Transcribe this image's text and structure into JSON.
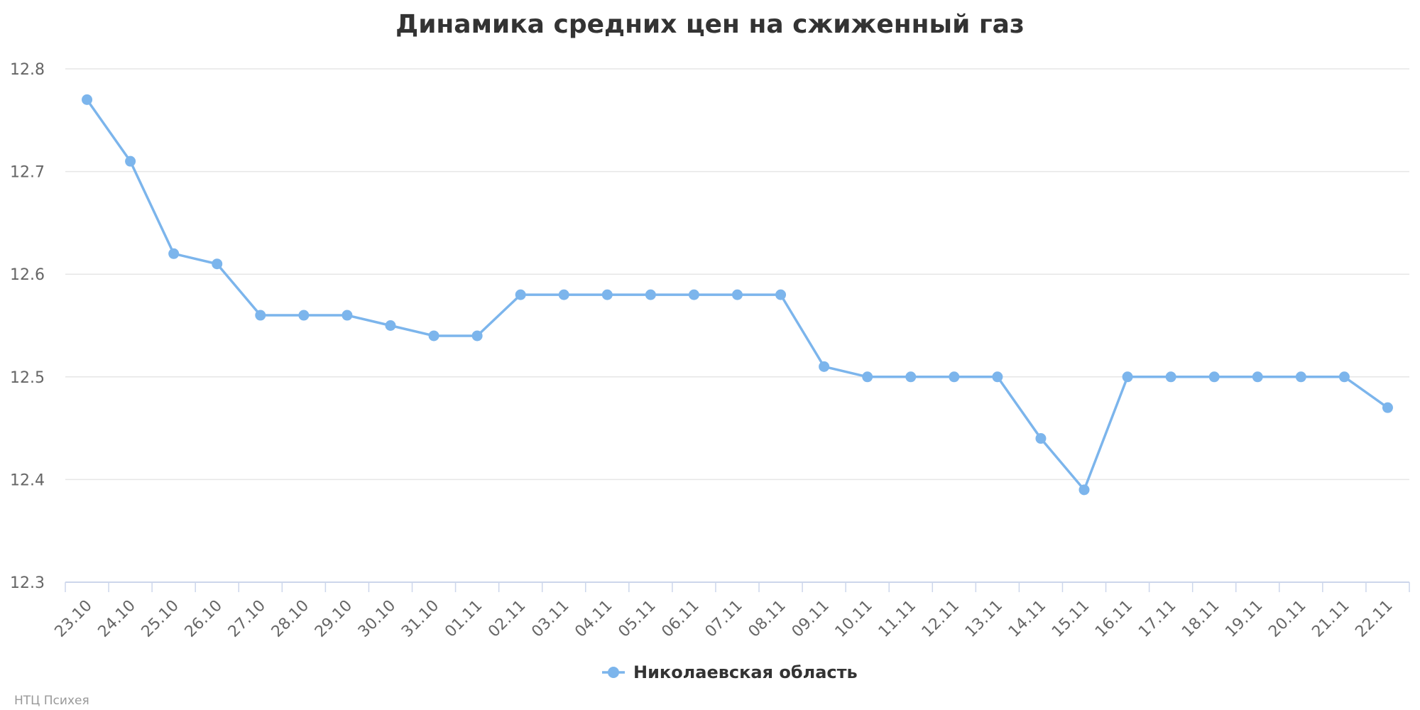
{
  "chart_data": {
    "type": "line",
    "title": "Динамика средних цен на сжиженный газ",
    "xlabel": "",
    "ylabel": "",
    "ylim": [
      12.3,
      12.8
    ],
    "yticks": [
      "12.3",
      "12.4",
      "12.5",
      "12.6",
      "12.7",
      "12.8"
    ],
    "grid": true,
    "legend_position": "bottom-center",
    "categories": [
      "23.10",
      "24.10",
      "25.10",
      "26.10",
      "27.10",
      "28.10",
      "29.10",
      "30.10",
      "31.10",
      "01.11",
      "02.11",
      "03.11",
      "04.11",
      "05.11",
      "06.11",
      "07.11",
      "08.11",
      "09.11",
      "10.11",
      "11.11",
      "12.11",
      "13.11",
      "14.11",
      "15.11",
      "16.11",
      "17.11",
      "18.11",
      "19.11",
      "20.11",
      "21.11",
      "22.11"
    ],
    "series": [
      {
        "name": "Николаевская область",
        "color": "#7cb5ec",
        "values": [
          12.77,
          12.71,
          12.62,
          12.61,
          12.56,
          12.56,
          12.56,
          12.55,
          12.54,
          12.54,
          12.58,
          12.58,
          12.58,
          12.58,
          12.58,
          12.58,
          12.58,
          12.51,
          12.5,
          12.5,
          12.5,
          12.5,
          12.44,
          12.39,
          12.5,
          12.5,
          12.5,
          12.5,
          12.5,
          12.5,
          12.47
        ]
      }
    ]
  },
  "credit": "НТЦ Психея",
  "colors": {
    "series": "#7cb5ec",
    "grid": "#e6e6e6",
    "axis": "#ccd6eb",
    "title": "#333333",
    "tick_label": "#666666",
    "credit": "#999999"
  }
}
